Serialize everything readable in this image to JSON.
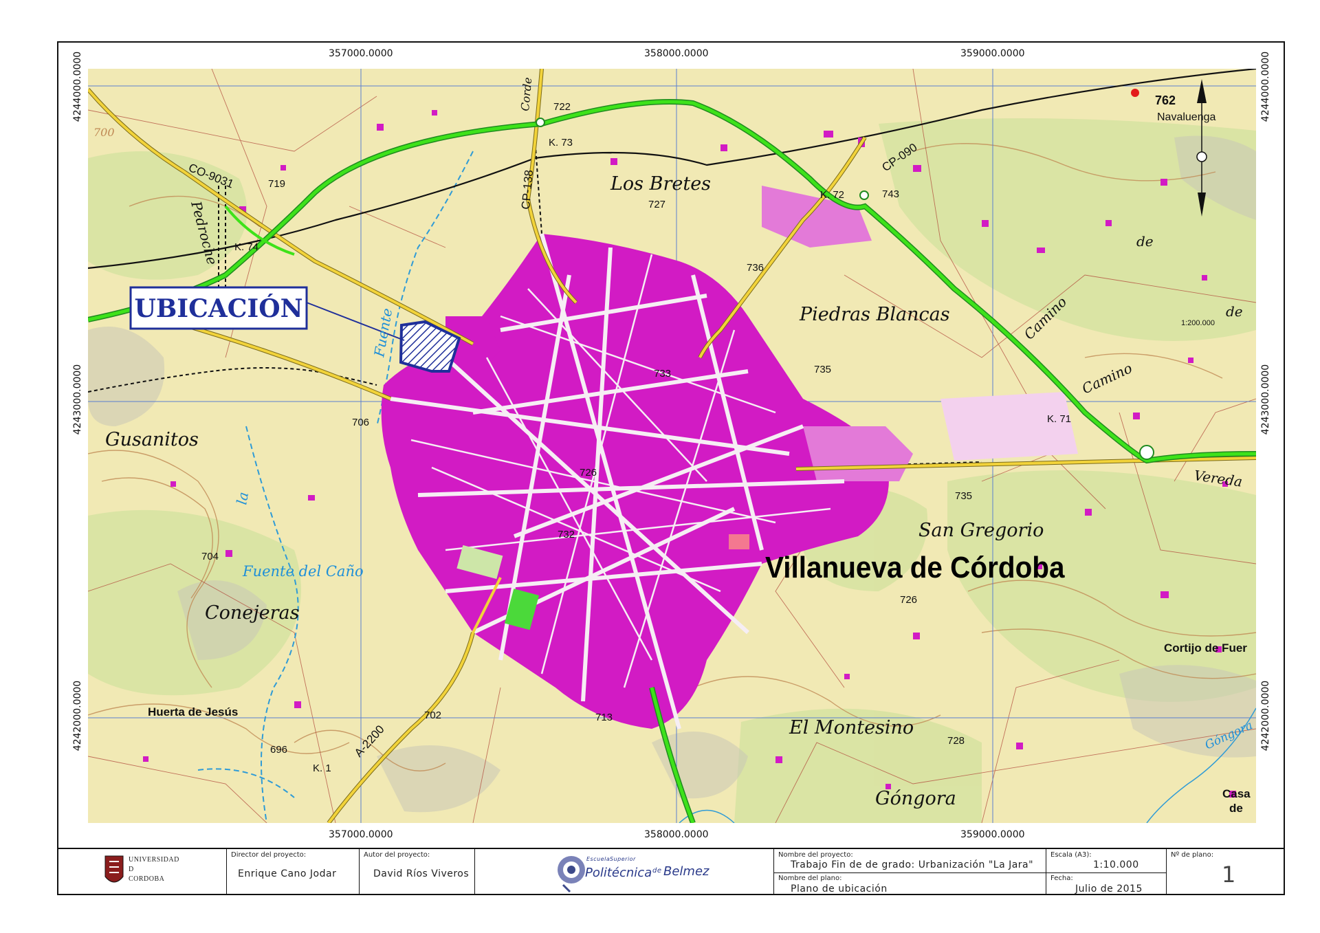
{
  "map": {
    "top_coords": [
      "357000.0000",
      "358000.0000",
      "359000.0000"
    ],
    "bottom_coords": [
      "357000.0000",
      "358000.0000",
      "359000.0000"
    ],
    "left_coords": [
      "4244000.0000",
      "4243000.0000",
      "4242000.0000"
    ],
    "right_coords": [
      "4244000.0000",
      "4243000.0000",
      "4242000.0000"
    ],
    "callout": "UBICACIÓN",
    "town": "Villanueva de Córdoba",
    "places": {
      "los_bretes": "Los Bretes",
      "piedras_blancas": "Piedras Blancas",
      "gusanitos": "Gusanitos",
      "san_gregorio": "San Gregorio",
      "conejeras": "Conejeras",
      "fuente_del_cano": "Fuente del Caño",
      "el_montesino": "El Montesino",
      "gongora": "Góngora",
      "huerta_de_jesus": "Huerta de Jesús",
      "cortijo": "Cortijo de Fuer",
      "navaluenga": "Navaluenga",
      "casa": "Casa",
      "de_small": "de",
      "camino1": "Camino",
      "camino2": "Camino",
      "de1": "de",
      "de2": "de",
      "vereda": "Vereda",
      "pedroche": "Pedroche",
      "fuente_vertical": "Fuente",
      "la": "la",
      "gongora_blue": "Góngora",
      "cordel": "Corde",
      "scale_note": "1:200.000"
    },
    "roads": {
      "co9031": "CO-9031",
      "cp090": "CP-090",
      "cp138": "CP-138",
      "a2200": "A-2200",
      "k73": "K. 73",
      "k72": "K. 72",
      "k74": "K. 74",
      "k71": "K. 71",
      "k1": "K. 1"
    },
    "elevations": {
      "e762": "762",
      "e722": "722",
      "e719": "719",
      "e727": "727",
      "e743": "743",
      "e736": "736",
      "e733": "733",
      "e735a": "735",
      "e706": "706",
      "e726a": "726",
      "e735b": "735",
      "e732": "732",
      "e704": "704",
      "e726b": "726",
      "e702": "702",
      "e713": "713",
      "e728": "728",
      "e696": "696",
      "e700": "700"
    }
  },
  "title_block": {
    "university_line1": "UNIVERSIDAD",
    "university_line2": "D",
    "university_line3": "CORDOBA",
    "director_label": "Director del proyecto:",
    "director_value": "Enrique Cano Jodar",
    "author_label": "Autor del proyecto:",
    "author_value": "David Ríos Viveros",
    "school_small1": "Escuela",
    "school_small2": "Superior",
    "school_main": "Politécnica",
    "school_de": "de",
    "school_place": "Belmez",
    "project_name_label": "Nombre del proyecto:",
    "project_name_value": "Trabajo Fin de de grado: Urbanización \"La Jara\"",
    "plan_name_label": "Nombre del plano:",
    "plan_name_value": "Plano de ubicación",
    "scale_label": "Escala (A3):",
    "scale_value": "1:10.000",
    "date_label": "Fecha:",
    "date_value": "Julio de 2015",
    "plan_no_label": "Nº de plano:",
    "plan_no_value": "1"
  }
}
